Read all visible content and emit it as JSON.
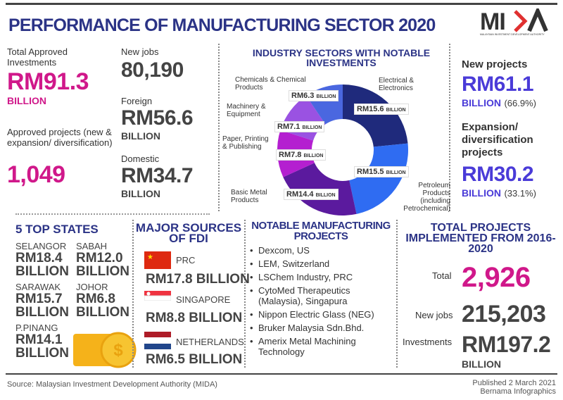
{
  "header": {
    "title": "PERFORMANCE OF MANUFACTURING SECTOR 2020",
    "logo_text": "MIDA",
    "logo_subtitle": "MALAYSIAN INVESTMENT DEVELOPMENT AUTHORITY"
  },
  "overview": {
    "total_label": "Total Approved Investments",
    "total_value": "RM91.3",
    "total_unit": "BILLION",
    "projects_label": "Approved projects (new & expansion/ diversification)",
    "projects_value": "1,049",
    "jobs_label": "New jobs",
    "jobs_value": "80,190",
    "foreign_label": "Foreign",
    "foreign_value": "RM56.6",
    "foreign_unit": "BILLION",
    "domestic_label": "Domestic",
    "domestic_value": "RM34.7",
    "domestic_unit": "BILLION"
  },
  "projects": {
    "new_label": "New projects",
    "new_value": "RM61.1",
    "new_unit": "BILLION",
    "new_pct": "(66.9%)",
    "exp_label": "Expansion/ diversification projects",
    "exp_value": "RM30.2",
    "exp_unit": "BILLION",
    "exp_pct": "(33.1%)"
  },
  "chart_data": {
    "type": "pie",
    "title": "INDUSTRY SECTORS WITH NOTABLE INVESTMENTS",
    "unit": "RM billion",
    "categories": [
      "Electrical & Electronics",
      "Petroleum Products (including Petrochemical)",
      "Basic Metal Products",
      "Paper, Printing & Publishing",
      "Machinery & Equipment",
      "Chemicals & Chemical Products"
    ],
    "values": [
      15.6,
      15.5,
      14.4,
      7.8,
      7.1,
      6.3
    ],
    "labels": [
      "RM15.6",
      "RM15.5",
      "RM14.4",
      "RM7.8",
      "RM7.1",
      "RM6.3"
    ],
    "label_unit": "BILLION",
    "colors": [
      "#1f2a7c",
      "#2f6cf2",
      "#5b1a9e",
      "#b41fd0",
      "#9a52e2",
      "#4a67e0"
    ]
  },
  "states": {
    "title": "5 TOP STATES",
    "items": [
      {
        "name": "SELANGOR",
        "value": "RM18.4",
        "unit": "BILLION"
      },
      {
        "name": "SABAH",
        "value": "RM12.0",
        "unit": "BILLION"
      },
      {
        "name": "SARAWAK",
        "value": "RM15.7",
        "unit": "BILLION"
      },
      {
        "name": "JOHOR",
        "value": "RM6.8",
        "unit": "BILLION"
      },
      {
        "name": "P.PINANG",
        "value": "RM14.1",
        "unit": "BILLION"
      }
    ]
  },
  "fdi": {
    "title": "MAJOR SOURCES OF FDI",
    "items": [
      {
        "country": "PRC",
        "value": "RM17.8 BILLION"
      },
      {
        "country": "SINGAPORE",
        "value": "RM8.8 BILLION"
      },
      {
        "country": "NETHERLANDS",
        "value": "RM6.5 BILLION"
      }
    ]
  },
  "notable": {
    "title": "NOTABLE MANUFACTURING PROJECTS",
    "items": [
      "Dexcom, US",
      "LEM, Switzerland",
      "LSChem Industry, PRC",
      "CytoMed Therapeutics (Malaysia), Singapura",
      "Nippon Electric Glass (NEG)",
      "Bruker Malaysia Sdn.Bhd.",
      "Amerix Metal Machining Technology"
    ]
  },
  "total": {
    "title": "TOTAL PROJECTS IMPLEMENTED FROM 2016-2020",
    "total_label": "Total",
    "total_value": "2,926",
    "jobs_label": "New jobs",
    "jobs_value": "215,203",
    "inv_label": "Investments",
    "inv_value": "RM197.2",
    "inv_unit": "BILLION"
  },
  "footer": {
    "source": "Source: Malaysian Investment Development Authority (MIDA)",
    "published": "Published 2 March 2021",
    "credit": "Bernama Infographics"
  }
}
